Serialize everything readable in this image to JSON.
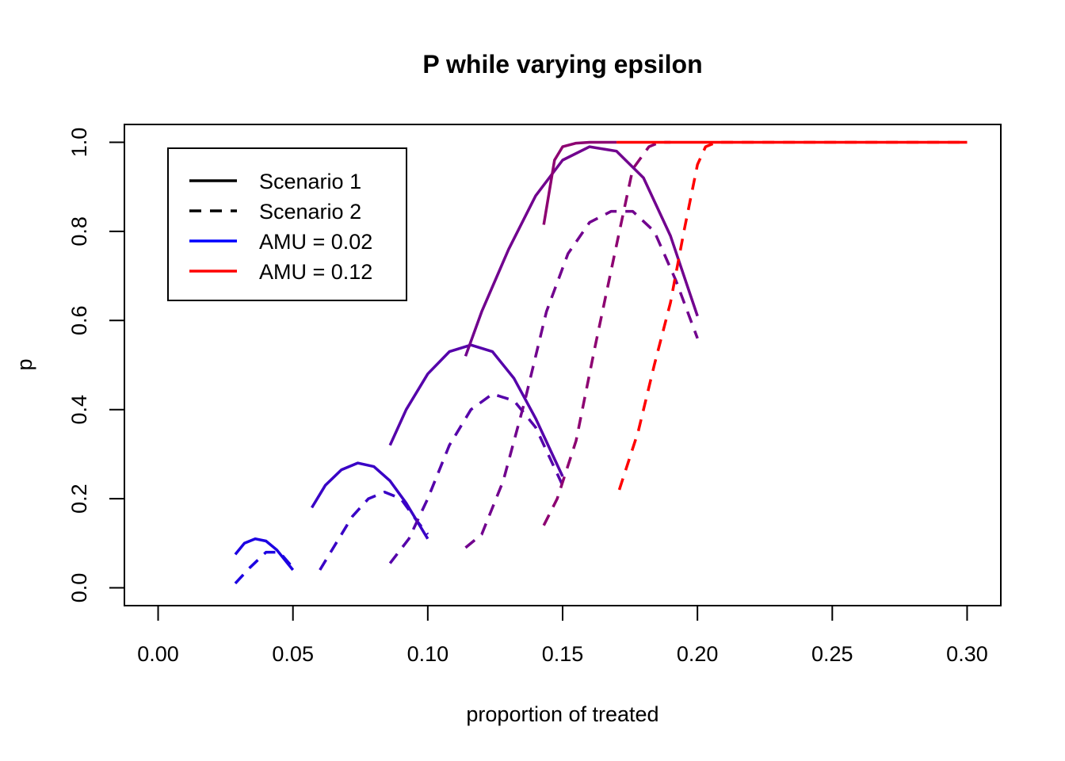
{
  "chart_data": {
    "type": "line",
    "title": "P while varying epsilon",
    "xlabel": "proportion of treated",
    "ylabel": "p",
    "xlim": [
      -0.0125,
      0.3125
    ],
    "ylim": [
      -0.04,
      1.04
    ],
    "xticks": [
      "0.00",
      "0.05",
      "0.10",
      "0.15",
      "0.20",
      "0.25",
      "0.30"
    ],
    "yticks": [
      "0.0",
      "0.2",
      "0.4",
      "0.6",
      "0.8",
      "1.0"
    ],
    "grid": false,
    "legend": {
      "position": "top-left",
      "entries": [
        {
          "label": "Scenario 1",
          "color": "#000000",
          "dash": "solid"
        },
        {
          "label": "Scenario 2",
          "color": "#000000",
          "dash": "dashed"
        },
        {
          "label": "AMU = 0.02",
          "color": "#0000ff",
          "dash": "solid"
        },
        {
          "label": "AMU = 0.12",
          "color": "#ff0000",
          "dash": "solid"
        }
      ]
    },
    "series": [
      {
        "color": "#1c00e2",
        "dash": "solid",
        "x": [
          0.0286,
          0.032,
          0.036,
          0.04,
          0.044,
          0.048,
          0.05
        ],
        "y": [
          0.075,
          0.1,
          0.11,
          0.105,
          0.085,
          0.055,
          0.04
        ]
      },
      {
        "color": "#1c00e2",
        "dash": "dashed",
        "x": [
          0.0286,
          0.034,
          0.04,
          0.045,
          0.05
        ],
        "y": [
          0.01,
          0.045,
          0.08,
          0.08,
          0.045
        ]
      },
      {
        "color": "#3900c6",
        "dash": "solid",
        "x": [
          0.057,
          0.062,
          0.068,
          0.074,
          0.08,
          0.086,
          0.092,
          0.1
        ],
        "y": [
          0.18,
          0.23,
          0.265,
          0.28,
          0.272,
          0.24,
          0.19,
          0.11
        ]
      },
      {
        "color": "#3900c6",
        "dash": "dashed",
        "x": [
          0.06,
          0.066,
          0.072,
          0.078,
          0.084,
          0.09,
          0.096,
          0.1
        ],
        "y": [
          0.04,
          0.1,
          0.16,
          0.2,
          0.215,
          0.2,
          0.15,
          0.12
        ]
      },
      {
        "color": "#5500aa",
        "dash": "solid",
        "x": [
          0.086,
          0.092,
          0.1,
          0.108,
          0.116,
          0.124,
          0.132,
          0.14,
          0.15
        ],
        "y": [
          0.32,
          0.4,
          0.48,
          0.53,
          0.545,
          0.53,
          0.47,
          0.38,
          0.25
        ]
      },
      {
        "color": "#5500aa",
        "dash": "dashed",
        "x": [
          0.086,
          0.093,
          0.1,
          0.108,
          0.116,
          0.124,
          0.132,
          0.14,
          0.15
        ],
        "y": [
          0.055,
          0.11,
          0.2,
          0.32,
          0.4,
          0.435,
          0.42,
          0.36,
          0.23
        ]
      },
      {
        "color": "#71008e",
        "dash": "solid",
        "x": [
          0.114,
          0.12,
          0.13,
          0.14,
          0.15,
          0.16,
          0.17,
          0.18,
          0.19,
          0.2
        ],
        "y": [
          0.52,
          0.62,
          0.76,
          0.88,
          0.96,
          0.99,
          0.98,
          0.92,
          0.79,
          0.61
        ]
      },
      {
        "color": "#71008e",
        "dash": "dashed",
        "x": [
          0.114,
          0.12,
          0.128,
          0.136,
          0.144,
          0.152,
          0.16,
          0.168,
          0.176,
          0.184,
          0.192,
          0.2
        ],
        "y": [
          0.09,
          0.12,
          0.24,
          0.42,
          0.62,
          0.75,
          0.82,
          0.845,
          0.845,
          0.8,
          0.69,
          0.56
        ]
      },
      {
        "color": "#8d0071",
        "dash": "solid",
        "x": [
          0.143,
          0.147,
          0.15,
          0.155,
          0.16,
          0.165,
          0.17
        ],
        "y": [
          0.815,
          0.96,
          0.99,
          0.998,
          1.0,
          1.0,
          1.0
        ]
      },
      {
        "color": "#8d0071",
        "dash": "dashed",
        "x": [
          0.143,
          0.148,
          0.155,
          0.162,
          0.17,
          0.176,
          0.182,
          0.186,
          0.19
        ],
        "y": [
          0.14,
          0.2,
          0.33,
          0.54,
          0.77,
          0.94,
          0.99,
          1.0,
          1.0
        ]
      },
      {
        "color": "#ff0000",
        "dash": "solid",
        "x": [
          0.17,
          0.2,
          0.25,
          0.3
        ],
        "y": [
          1.0,
          1.0,
          1.0,
          1.0
        ]
      },
      {
        "color": "#ff0000",
        "dash": "dashed",
        "x": [
          0.171,
          0.178,
          0.184,
          0.19,
          0.195,
          0.2,
          0.203,
          0.207,
          0.215,
          0.25,
          0.3
        ],
        "y": [
          0.22,
          0.35,
          0.5,
          0.64,
          0.8,
          0.95,
          0.99,
          1.0,
          1.0,
          1.0,
          1.0
        ]
      }
    ]
  }
}
